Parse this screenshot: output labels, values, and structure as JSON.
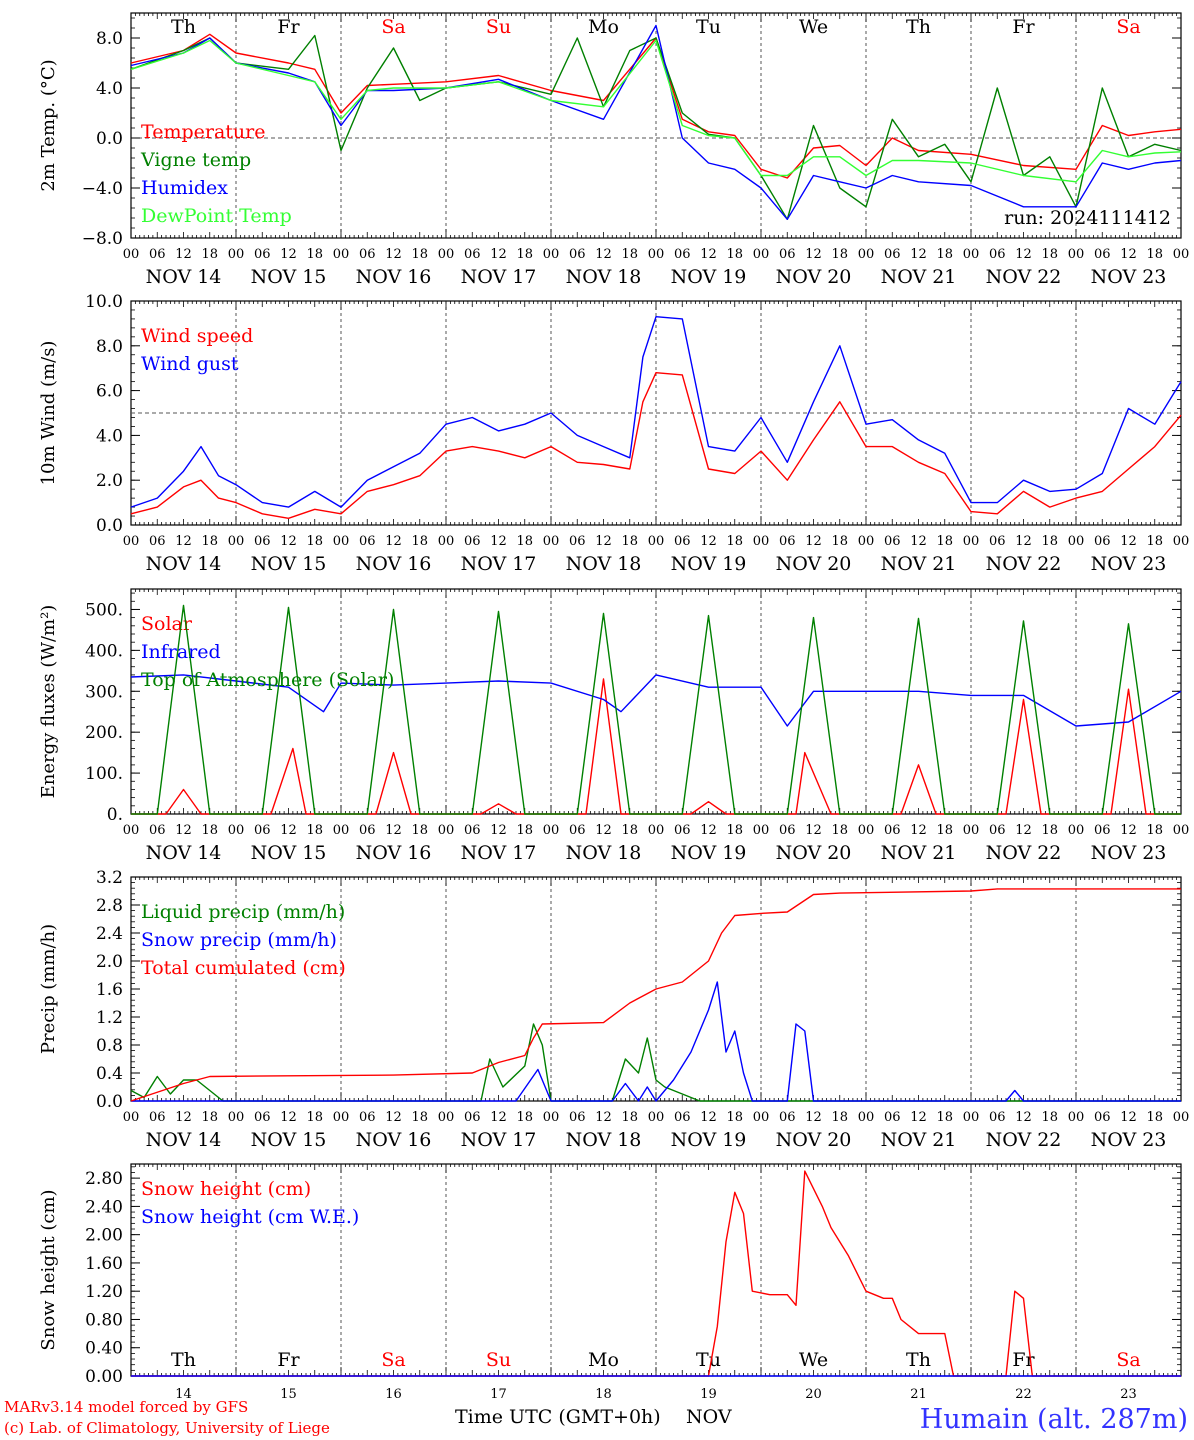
{
  "day_abbrev": [
    "Th",
    "Fr",
    "Sa",
    "Su",
    "Mo",
    "Tu",
    "We",
    "Th",
    "Fr",
    "Sa"
  ],
  "day_colors": [
    "#000000",
    "#000000",
    "#ff0000",
    "#ff0000",
    "#000000",
    "#000000",
    "#000000",
    "#000000",
    "#000000",
    "#ff0000"
  ],
  "date_labels": [
    "NOV 14",
    "NOV 15",
    "NOV 16",
    "NOV 17",
    "NOV 18",
    "NOV 19",
    "NOV 20",
    "NOV 21",
    "NOV 22",
    "NOV 23"
  ],
  "hour_ticks": [
    "00",
    "06",
    "12",
    "18"
  ],
  "hour_end": "00",
  "day_numbers": [
    "14",
    "15",
    "16",
    "17",
    "18",
    "19",
    "20",
    "21",
    "22",
    "23"
  ],
  "footer": {
    "model": "MARv3.14 model forced by GFS",
    "credit": "(c) Lab. of Climatology, University of Liege",
    "time_label": "Time UTC (GMT+0h)",
    "month": "NOV",
    "station": "Humain (alt. 287m)"
  },
  "chart_data": [
    {
      "type": "line",
      "ylabel": "2m Temp. (°C)",
      "ylim": [
        -8,
        10
      ],
      "yticks": [
        8,
        4,
        0,
        -4,
        -8
      ],
      "yfmt": 1,
      "reference_line": 0,
      "run_label": "run: 2024111412",
      "series": [
        {
          "name": "Temperature",
          "color": "#ff0000",
          "x": [
            0,
            12,
            18,
            24,
            36,
            42,
            48,
            54,
            60,
            72,
            84,
            96,
            108,
            120,
            126,
            132,
            138,
            144,
            150,
            156,
            162,
            168,
            174,
            180,
            192,
            204,
            216,
            222,
            228,
            234,
            240
          ],
          "y": [
            6,
            7,
            8.3,
            6.8,
            6,
            5.5,
            2,
            4.2,
            4.3,
            4.5,
            5,
            3.8,
            3,
            8,
            1.5,
            0.5,
            0.2,
            -2.5,
            -3.2,
            -0.8,
            -0.6,
            -2.2,
            0,
            -1,
            -1.3,
            -2.2,
            -2.5,
            1,
            0.2,
            0.5,
            0.7
          ]
        },
        {
          "name": "Vigne temp",
          "color": "#008000",
          "x": [
            0,
            12,
            18,
            24,
            36,
            42,
            48,
            54,
            60,
            66,
            72,
            84,
            96,
            102,
            108,
            114,
            120,
            126,
            132,
            138,
            144,
            150,
            156,
            162,
            168,
            174,
            180,
            186,
            192,
            198,
            204,
            210,
            216,
            222,
            228,
            234,
            240
          ],
          "y": [
            5.5,
            7,
            8,
            6,
            5.5,
            8.2,
            -1,
            4,
            7.2,
            3,
            4,
            4.5,
            3.5,
            8,
            2.5,
            7,
            8,
            2,
            0.3,
            0,
            -3,
            -6.5,
            1,
            -4,
            -5.5,
            1.5,
            -1.5,
            -0.5,
            -3.5,
            4,
            -3,
            -1.5,
            -5.5,
            4,
            -1.5,
            -0.5,
            -1
          ]
        },
        {
          "name": "Humidex",
          "color": "#0000ff",
          "x": [
            0,
            12,
            18,
            24,
            36,
            42,
            48,
            54,
            60,
            72,
            84,
            96,
            108,
            120,
            126,
            132,
            138,
            144,
            150,
            156,
            162,
            168,
            174,
            180,
            192,
            204,
            216,
            222,
            228,
            234,
            240
          ],
          "y": [
            5.8,
            6.8,
            8,
            6,
            5.2,
            4.5,
            1,
            3.8,
            3.8,
            4,
            4.7,
            3,
            1.5,
            9,
            0,
            -2,
            -2.5,
            -4,
            -6.5,
            -3,
            -3.5,
            -4,
            -3,
            -3.5,
            -3.8,
            -5.5,
            -5.5,
            -2,
            -2.5,
            -2,
            -1.8
          ]
        },
        {
          "name": "DewPoint Temp",
          "color": "#33ff33",
          "x": [
            0,
            12,
            18,
            24,
            36,
            42,
            48,
            54,
            60,
            72,
            84,
            96,
            108,
            120,
            126,
            132,
            138,
            144,
            150,
            156,
            162,
            168,
            174,
            180,
            192,
            204,
            216,
            222,
            228,
            234,
            240
          ],
          "y": [
            5.5,
            6.8,
            7.8,
            6,
            5,
            4.5,
            1.5,
            3.8,
            4,
            4,
            4.5,
            3,
            2.5,
            7.8,
            1,
            0.2,
            0,
            -3,
            -3,
            -1.5,
            -1.5,
            -3,
            -1.8,
            -1.8,
            -2,
            -3,
            -3.5,
            -1,
            -1.5,
            -1.2,
            -1.1
          ]
        }
      ]
    },
    {
      "type": "line",
      "ylabel": "10m Wind (m/s)",
      "ylim": [
        0,
        10
      ],
      "yticks": [
        0,
        2,
        4,
        6,
        8,
        10
      ],
      "yfmt": 1,
      "reference_line": 5,
      "series": [
        {
          "name": "Wind speed",
          "color": "#ff0000",
          "x": [
            0,
            6,
            12,
            16,
            20,
            24,
            30,
            36,
            42,
            48,
            54,
            60,
            66,
            72,
            78,
            84,
            90,
            96,
            102,
            108,
            114,
            117,
            120,
            126,
            132,
            138,
            144,
            150,
            156,
            162,
            168,
            174,
            180,
            186,
            192,
            198,
            204,
            210,
            216,
            222,
            228,
            234,
            240
          ],
          "y": [
            0.5,
            0.8,
            1.7,
            2,
            1.2,
            1,
            0.5,
            0.3,
            0.7,
            0.5,
            1.5,
            1.8,
            2.2,
            3.3,
            3.5,
            3.3,
            3,
            3.5,
            2.8,
            2.7,
            2.5,
            5.5,
            6.8,
            6.7,
            2.5,
            2.3,
            3.3,
            2,
            3.8,
            5.5,
            3.5,
            3.5,
            2.8,
            2.3,
            0.6,
            0.5,
            1.5,
            0.8,
            1.2,
            1.5,
            2.5,
            3.5,
            4.9
          ]
        },
        {
          "name": "Wind gust",
          "color": "#0000ff",
          "x": [
            0,
            6,
            12,
            16,
            20,
            24,
            30,
            36,
            42,
            48,
            54,
            60,
            66,
            72,
            78,
            84,
            90,
            96,
            102,
            108,
            114,
            117,
            120,
            126,
            132,
            138,
            144,
            150,
            156,
            162,
            168,
            174,
            180,
            186,
            192,
            198,
            204,
            210,
            216,
            222,
            228,
            234,
            240
          ],
          "y": [
            0.8,
            1.2,
            2.4,
            3.5,
            2.2,
            1.8,
            1,
            0.8,
            1.5,
            0.8,
            2,
            2.6,
            3.2,
            4.5,
            4.8,
            4.2,
            4.5,
            5,
            4,
            3.5,
            3,
            7.5,
            9.3,
            9.2,
            3.5,
            3.3,
            4.8,
            2.8,
            5.5,
            8,
            4.5,
            4.7,
            3.8,
            3.2,
            1,
            1,
            2,
            1.5,
            1.6,
            2.3,
            5.2,
            4.5,
            6.4
          ]
        }
      ]
    },
    {
      "type": "line",
      "ylabel": "Energy fluxes (W/m²)",
      "ylim": [
        0,
        550
      ],
      "yticks": [
        0,
        100,
        200,
        300,
        400,
        500
      ],
      "yfmt": 0,
      "series": [
        {
          "name": "Solar",
          "color": "#ff0000",
          "x": [
            0,
            8,
            12,
            16,
            24,
            32,
            37,
            40,
            48,
            56,
            60,
            64,
            72,
            80,
            84,
            88,
            96,
            104,
            108,
            112,
            120,
            128,
            132,
            136,
            144,
            152,
            154,
            160,
            168,
            176,
            180,
            184,
            192,
            200,
            204,
            208,
            216,
            224,
            228,
            232,
            240
          ],
          "y": [
            0,
            0,
            60,
            0,
            0,
            0,
            160,
            0,
            0,
            0,
            150,
            0,
            0,
            0,
            25,
            0,
            0,
            0,
            330,
            0,
            0,
            0,
            30,
            0,
            0,
            0,
            150,
            0,
            0,
            0,
            120,
            0,
            0,
            0,
            280,
            0,
            0,
            0,
            305,
            0,
            0
          ]
        },
        {
          "name": "Infrared",
          "color": "#0000ff",
          "x": [
            0,
            12,
            24,
            36,
            44,
            48,
            60,
            72,
            84,
            96,
            108,
            112,
            120,
            132,
            144,
            150,
            156,
            162,
            168,
            180,
            192,
            204,
            216,
            228,
            240
          ],
          "y": [
            335,
            340,
            325,
            310,
            250,
            320,
            315,
            320,
            325,
            320,
            280,
            250,
            340,
            310,
            310,
            215,
            300,
            300,
            300,
            300,
            290,
            290,
            215,
            225,
            300
          ]
        },
        {
          "name": "Top of Atmosphere (Solar)",
          "color": "#008000",
          "x": [
            0,
            6,
            12,
            18,
            24,
            30,
            36,
            42,
            48,
            54,
            60,
            66,
            72,
            78,
            84,
            90,
            96,
            102,
            108,
            114,
            120,
            126,
            132,
            138,
            144,
            150,
            156,
            162,
            168,
            174,
            180,
            186,
            192,
            198,
            204,
            210,
            216,
            222,
            228,
            234,
            240
          ],
          "y": [
            0,
            0,
            510,
            0,
            0,
            0,
            505,
            0,
            0,
            0,
            500,
            0,
            0,
            0,
            495,
            0,
            0,
            0,
            490,
            0,
            0,
            0,
            485,
            0,
            0,
            0,
            480,
            0,
            0,
            0,
            478,
            0,
            0,
            0,
            472,
            0,
            0,
            0,
            465,
            0,
            0
          ]
        }
      ]
    },
    {
      "type": "line",
      "ylabel": "Precip (mm/h)",
      "ylim": [
        0,
        3.2
      ],
      "yticks": [
        0,
        0.4,
        0.8,
        1.2,
        1.6,
        2.0,
        2.4,
        2.8,
        3.2
      ],
      "yfmt": 1,
      "series": [
        {
          "name": "Liquid precip (mm/h)",
          "color": "#008000",
          "x": [
            0,
            3,
            6,
            9,
            12,
            15,
            18,
            21,
            24,
            80,
            82,
            85,
            90,
            92,
            94,
            96,
            110,
            113,
            116,
            118,
            120,
            122,
            126,
            130,
            240
          ],
          "y": [
            0.15,
            0.05,
            0.35,
            0.1,
            0.3,
            0.3,
            0.15,
            0,
            0,
            0,
            0.6,
            0.2,
            0.5,
            1.1,
            0.8,
            0,
            0,
            0.6,
            0.4,
            0.9,
            0.3,
            0.2,
            0.1,
            0,
            0
          ]
        },
        {
          "name": "Snow precip (mm/h)",
          "color": "#0000ff",
          "x": [
            0,
            88,
            93,
            96,
            110,
            113,
            116,
            118,
            120,
            124,
            128,
            132,
            134,
            136,
            138,
            140,
            142,
            150,
            152,
            154,
            156,
            200,
            202,
            204,
            240
          ],
          "y": [
            0,
            0,
            0.45,
            0,
            0,
            0.25,
            0,
            0.2,
            0,
            0.3,
            0.7,
            1.3,
            1.7,
            0.7,
            1.0,
            0.4,
            0,
            0,
            1.1,
            1.0,
            0,
            0,
            0.15,
            0,
            0
          ]
        },
        {
          "name": "Total cumulated (cm)",
          "color": "#ff0000",
          "x": [
            0,
            12,
            18,
            36,
            60,
            78,
            84,
            90,
            92,
            94,
            108,
            114,
            120,
            126,
            132,
            135,
            138,
            144,
            150,
            156,
            162,
            192,
            198,
            240
          ],
          "y": [
            0,
            0.25,
            0.35,
            0.36,
            0.37,
            0.4,
            0.55,
            0.65,
            0.9,
            1.1,
            1.12,
            1.4,
            1.6,
            1.7,
            2.0,
            2.4,
            2.65,
            2.68,
            2.7,
            2.95,
            2.97,
            3.0,
            3.03,
            3.03
          ]
        }
      ]
    },
    {
      "type": "line",
      "ylabel": "Snow height (cm)",
      "ylim": [
        0,
        3.0
      ],
      "yticks": [
        0,
        0.4,
        0.8,
        1.2,
        1.6,
        2.0,
        2.4,
        2.8
      ],
      "yfmt": 2,
      "series": [
        {
          "name": "Snow height (cm)",
          "color": "#ff0000",
          "x": [
            0,
            132,
            134,
            136,
            138,
            140,
            142,
            146,
            150,
            152,
            154,
            158,
            160,
            164,
            168,
            172,
            174,
            176,
            180,
            186,
            188,
            190,
            200,
            202,
            204,
            206,
            240
          ],
          "y": [
            0,
            0,
            0.7,
            1.9,
            2.6,
            2.3,
            1.2,
            1.15,
            1.15,
            1.0,
            2.9,
            2.4,
            2.1,
            1.7,
            1.2,
            1.1,
            1.1,
            0.8,
            0.6,
            0.6,
            0,
            0,
            0,
            1.2,
            1.1,
            0,
            0
          ]
        },
        {
          "name": "Snow height (cm W.E.)",
          "color": "#0000ff",
          "x": [
            0,
            240
          ],
          "y": [
            0,
            0
          ]
        }
      ]
    }
  ]
}
